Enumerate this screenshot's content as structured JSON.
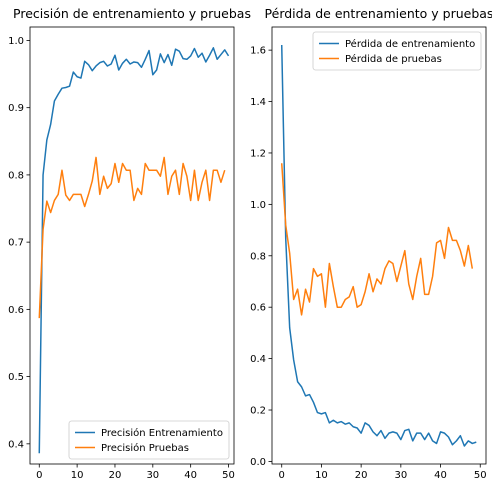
{
  "chart_data": [
    {
      "type": "line",
      "title": "Precisión de entrenamiento y pruebas",
      "xlabel": "",
      "ylabel": "",
      "xlim": [
        -2.45,
        51.45
      ],
      "ylim": [
        0.37,
        1.02
      ],
      "xticks": [
        0,
        10,
        20,
        30,
        40,
        50
      ],
      "yticks": [
        0.4,
        0.5,
        0.6,
        0.7,
        0.8,
        0.9,
        1.0
      ],
      "ytick_labels": [
        "0.4",
        "0.5",
        "0.6",
        "0.7",
        "0.8",
        "0.9",
        "1.0"
      ],
      "legend_position": "lower-right",
      "series": [
        {
          "name": "Precisión Entrenamiento",
          "color": "#1f77b4",
          "values": [
            0.386,
            0.8,
            0.852,
            0.875,
            0.91,
            0.92,
            0.929,
            0.93,
            0.932,
            0.953,
            0.946,
            0.944,
            0.969,
            0.964,
            0.955,
            0.962,
            0.967,
            0.969,
            0.962,
            0.965,
            0.978,
            0.956,
            0.966,
            0.972,
            0.965,
            0.968,
            0.967,
            0.96,
            0.972,
            0.985,
            0.949,
            0.956,
            0.98,
            0.967,
            0.979,
            0.963,
            0.987,
            0.984,
            0.973,
            0.972,
            0.977,
            0.988,
            0.975,
            0.981,
            0.968,
            0.978,
            0.989,
            0.972,
            0.979,
            0.986,
            0.977
          ]
        },
        {
          "name": "Precisión Pruebas",
          "color": "#ff7f0e",
          "values": [
            0.587,
            0.719,
            0.761,
            0.744,
            0.762,
            0.771,
            0.807,
            0.77,
            0.762,
            0.771,
            0.771,
            0.771,
            0.753,
            0.771,
            0.791,
            0.826,
            0.771,
            0.798,
            0.78,
            0.787,
            0.817,
            0.789,
            0.817,
            0.807,
            0.807,
            0.762,
            0.78,
            0.771,
            0.817,
            0.807,
            0.807,
            0.807,
            0.798,
            0.826,
            0.771,
            0.798,
            0.807,
            0.771,
            0.817,
            0.798,
            0.762,
            0.807,
            0.762,
            0.789,
            0.807,
            0.762,
            0.807,
            0.807,
            0.789,
            0.807
          ]
        }
      ]
    },
    {
      "type": "line",
      "title": "Pérdida de entrenamiento y pruebas",
      "xlabel": "",
      "ylabel": "",
      "xlim": [
        -2.45,
        51.45
      ],
      "ylim": [
        -0.01,
        1.69
      ],
      "xticks": [
        0,
        10,
        20,
        30,
        40,
        50
      ],
      "yticks": [
        0.0,
        0.2,
        0.4,
        0.6,
        0.8,
        1.0,
        1.2,
        1.4,
        1.6
      ],
      "ytick_labels": [
        "0.0",
        "0.2",
        "0.4",
        "0.6",
        "0.8",
        "1.0",
        "1.2",
        "1.4",
        "1.6"
      ],
      "legend_position": "top-right",
      "series": [
        {
          "name": "Pérdida de entrenamiento",
          "color": "#1f77b4",
          "values": [
            1.62,
            0.87,
            0.52,
            0.395,
            0.31,
            0.29,
            0.255,
            0.26,
            0.23,
            0.19,
            0.185,
            0.19,
            0.15,
            0.16,
            0.15,
            0.155,
            0.145,
            0.15,
            0.135,
            0.13,
            0.11,
            0.15,
            0.14,
            0.115,
            0.1,
            0.12,
            0.09,
            0.11,
            0.115,
            0.11,
            0.085,
            0.12,
            0.125,
            0.08,
            0.11,
            0.11,
            0.085,
            0.11,
            0.08,
            0.07,
            0.115,
            0.11,
            0.095,
            0.065,
            0.08,
            0.1,
            0.06,
            0.08,
            0.07,
            0.075
          ]
        },
        {
          "name": "Pérdida de pruebas",
          "color": "#ff7f0e",
          "values": [
            1.16,
            0.92,
            0.81,
            0.63,
            0.67,
            0.57,
            0.67,
            0.62,
            0.75,
            0.72,
            0.73,
            0.6,
            0.77,
            0.68,
            0.6,
            0.6,
            0.63,
            0.64,
            0.68,
            0.6,
            0.61,
            0.66,
            0.73,
            0.66,
            0.71,
            0.69,
            0.75,
            0.78,
            0.77,
            0.7,
            0.76,
            0.82,
            0.69,
            0.63,
            0.72,
            0.79,
            0.65,
            0.65,
            0.72,
            0.85,
            0.86,
            0.79,
            0.91,
            0.86,
            0.86,
            0.82,
            0.76,
            0.84,
            0.75
          ]
        }
      ]
    }
  ]
}
